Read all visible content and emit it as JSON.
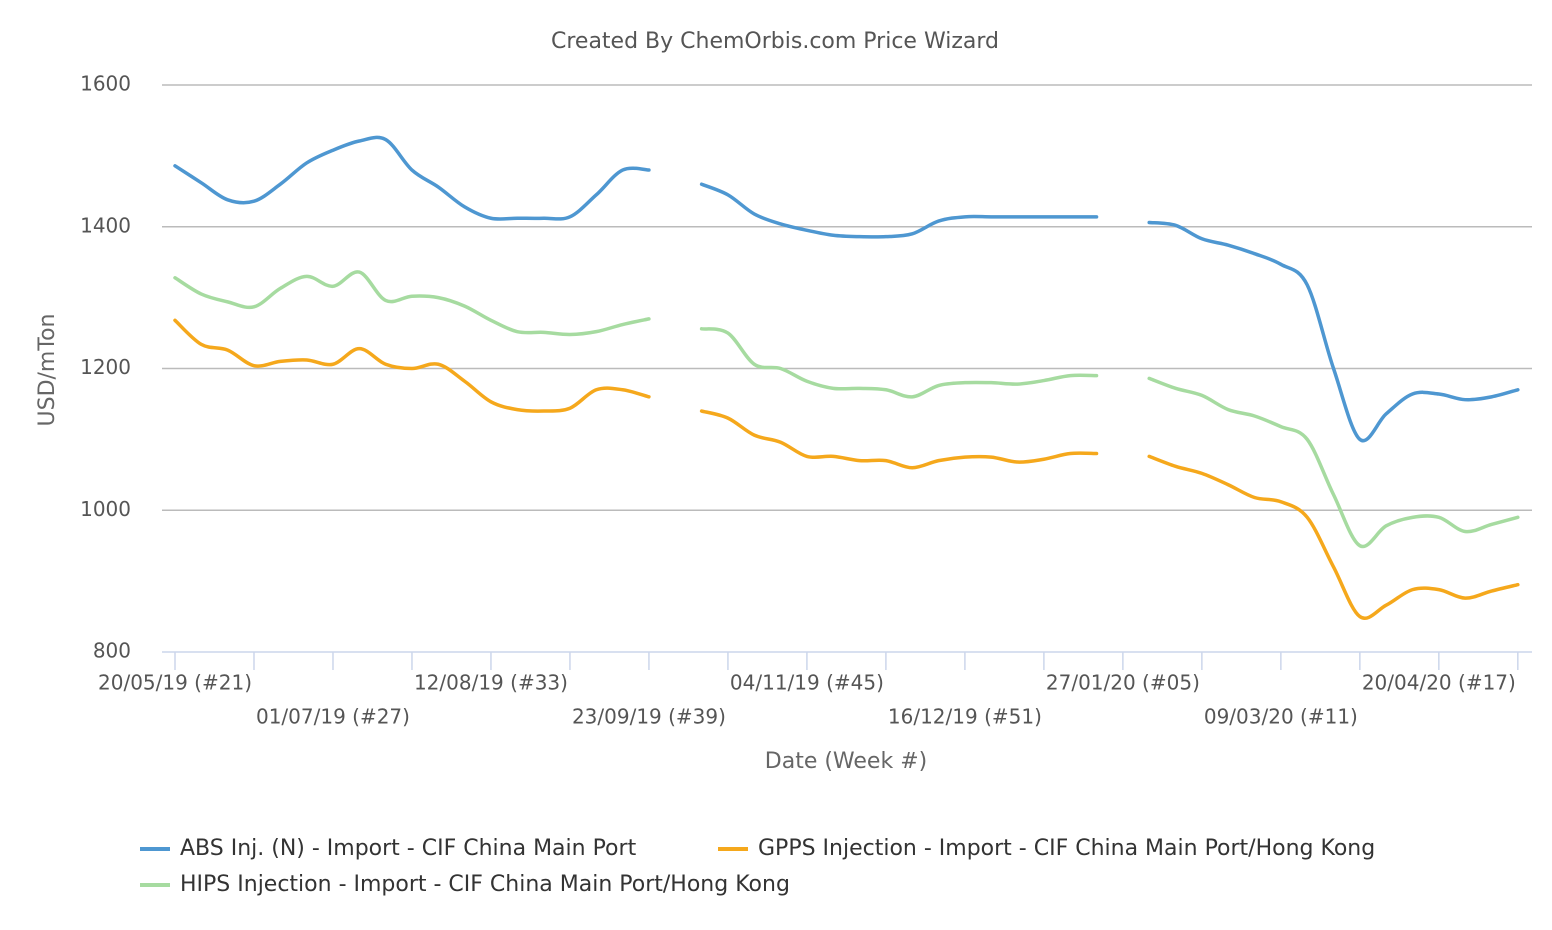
{
  "chart_data": {
    "type": "line",
    "title": "Created By ChemOrbis.com Price Wizard",
    "y_label": "USD/mTon",
    "x_label": "Date (Week #)",
    "categories": [
      "20/05/19 (#21)",
      null,
      null,
      null,
      null,
      null,
      "01/07/19 (#27)",
      null,
      null,
      null,
      null,
      null,
      "12/08/19 (#33)",
      null,
      null,
      null,
      null,
      null,
      "23/09/19 (#39)",
      null,
      null,
      null,
      null,
      null,
      "04/11/19 (#45)",
      null,
      null,
      null,
      null,
      null,
      "16/12/19 (#51)",
      null,
      null,
      null,
      null,
      null,
      "27/01/20 (#05)",
      null,
      null,
      null,
      null,
      null,
      "09/03/20 (#11)",
      null,
      null,
      null,
      null,
      null,
      "20/04/20 (#17)",
      null,
      null,
      null
    ],
    "series": [
      {
        "name": "ABS Inj. (N) - Import - CIF China Main Port",
        "color": "#4e97d1",
        "values": [
          1486,
          1462,
          1438,
          1436,
          1460,
          1490,
          1508,
          1521,
          1523,
          1480,
          1456,
          1428,
          1412,
          1412,
          1412,
          1414,
          1445,
          1480,
          1480,
          null,
          1460,
          1445,
          1418,
          1404,
          1395,
          1388,
          1386,
          1386,
          1390,
          1408,
          1414,
          1414,
          1414,
          1414,
          1414,
          1414,
          null,
          1406,
          1402,
          1383,
          1374,
          1362,
          1347,
          1318,
          1200,
          1100,
          1136,
          1164,
          1164,
          1156,
          1160,
          1170
        ]
      },
      {
        "name": "GPPS Injection - Import - CIF China Main Port/Hong Kong",
        "color": "#f5a81c",
        "values": [
          1268,
          1234,
          1226,
          1204,
          1210,
          1212,
          1206,
          1228,
          1206,
          1200,
          1206,
          1182,
          1153,
          1142,
          1140,
          1144,
          1170,
          1170,
          1160,
          null,
          1140,
          1130,
          1106,
          1096,
          1076,
          1076,
          1070,
          1070,
          1060,
          1070,
          1075,
          1075,
          1068,
          1072,
          1080,
          1080,
          null,
          1076,
          1062,
          1052,
          1036,
          1018,
          1012,
          990,
          920,
          850,
          866,
          888,
          888,
          876,
          886,
          895
        ]
      },
      {
        "name": "HIPS Injection - Import - CIF China Main Port/Hong Kong",
        "color": "#a6dba0",
        "values": [
          1328,
          1305,
          1294,
          1287,
          1313,
          1330,
          1316,
          1336,
          1296,
          1302,
          1300,
          1288,
          1268,
          1252,
          1251,
          1248,
          1252,
          1262,
          1270,
          null,
          1256,
          1250,
          1206,
          1200,
          1182,
          1172,
          1172,
          1170,
          1160,
          1176,
          1180,
          1180,
          1178,
          1183,
          1190,
          1190,
          null,
          1186,
          1172,
          1162,
          1142,
          1133,
          1118,
          1100,
          1022,
          950,
          978,
          990,
          990,
          970,
          980,
          990
        ]
      }
    ],
    "ylim": [
      800,
      1600
    ],
    "yticks": [
      800,
      1000,
      1200,
      1400,
      1600
    ],
    "grid": true
  }
}
